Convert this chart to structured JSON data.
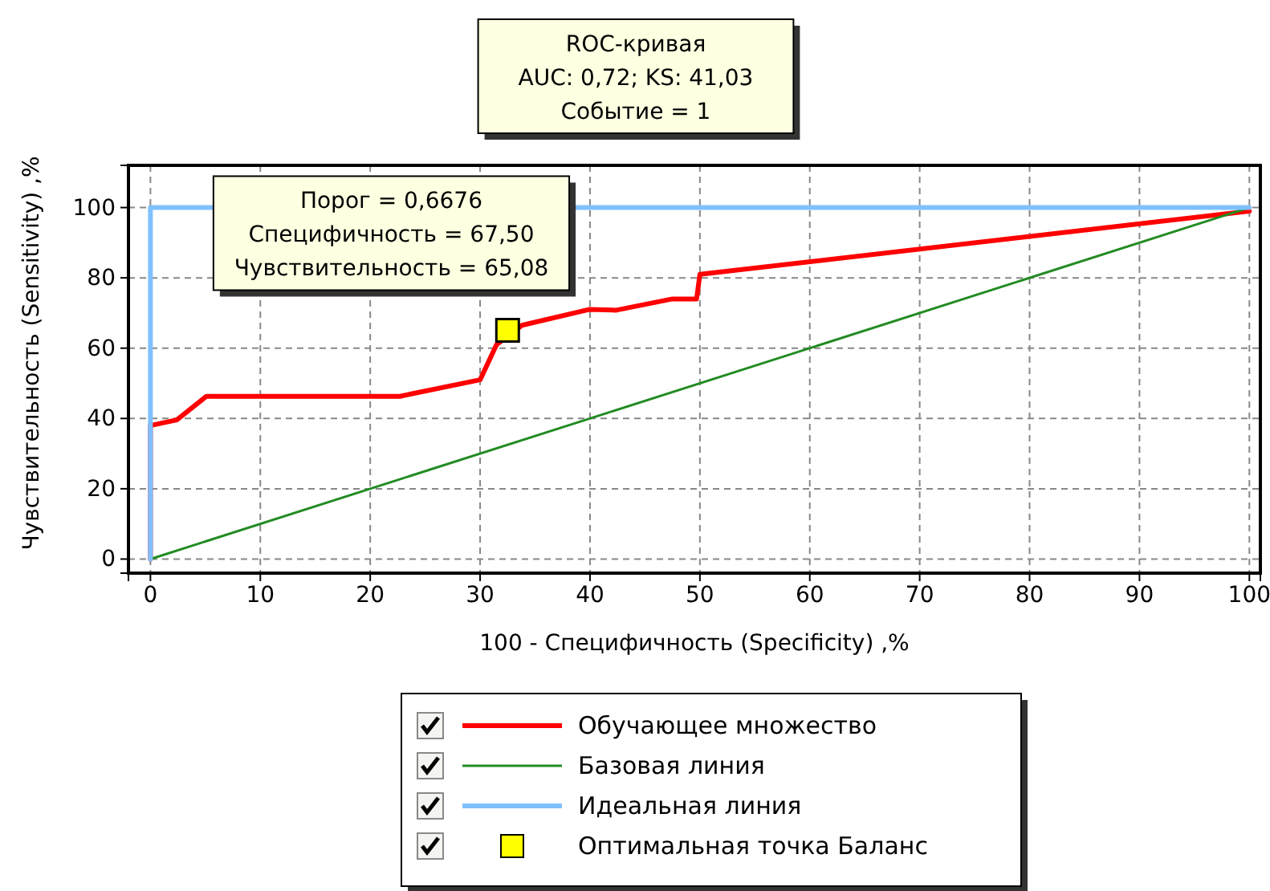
{
  "chart_data": {
    "type": "line",
    "xlabel": "100 - Специфичность (Specificity) ,%",
    "ylabel": "Чувствительность (Sensitivity) ,%",
    "xlim": [
      -2,
      101
    ],
    "ylim": [
      -4,
      112
    ],
    "xticks": [
      0,
      10,
      20,
      30,
      40,
      50,
      60,
      70,
      80,
      90,
      100
    ],
    "yticks": [
      0,
      20,
      40,
      60,
      80,
      100
    ],
    "grid": true,
    "legend": "bottom",
    "series": [
      {
        "name": "Обучающее множество",
        "color": "#ff0000",
        "x": [
          0,
          0,
          2.4,
          5.1,
          22.7,
          30,
          31.5,
          33.8,
          39.9,
          42.4,
          47.5,
          49.7,
          50,
          100
        ],
        "values": [
          0,
          38,
          39.6,
          46.3,
          46.3,
          51,
          61,
          66.5,
          71,
          70.8,
          74,
          74,
          81,
          99
        ]
      },
      {
        "name": "Базовая линия",
        "color": "#228b22",
        "x": [
          0,
          100
        ],
        "values": [
          0,
          100
        ]
      },
      {
        "name": "Идеальная линия",
        "color": "#80c0ff",
        "x": [
          0,
          0,
          100
        ],
        "values": [
          0,
          100,
          100
        ]
      },
      {
        "name": "Оптимальная точка Баланс",
        "type": "scatter",
        "marker": "square",
        "color": "#ffff00",
        "x": [
          32.5
        ],
        "values": [
          65.08
        ]
      }
    ],
    "annotations": [
      "ROC-кривая\nAUC:  0,72; KS: 41,03\nСобытие = 1",
      {
        "text": "Порог = 0,6676\nСпецифичность = 67,50\nЧувствительность = 65,08",
        "x": 32.5,
        "y": 65.08
      }
    ]
  }
}
